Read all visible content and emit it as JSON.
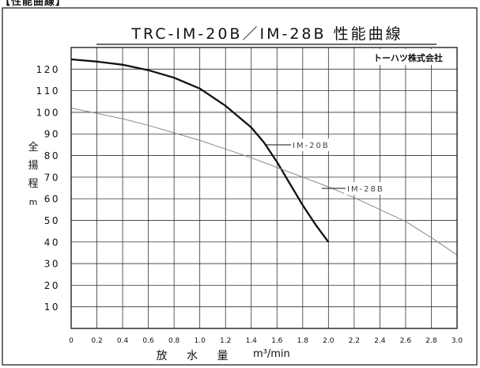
{
  "header_label": "【性能曲線】",
  "company": "トーハツ株式会社",
  "chart_data": {
    "type": "line",
    "title": "TRC-IM-20B／IM-28B 性能曲線",
    "ylabel": [
      "全",
      "揚",
      "程",
      "m"
    ],
    "xlabel": "放 水 量",
    "xunit": "m³/min",
    "xlim": [
      0,
      3.0
    ],
    "ylim": [
      0,
      130
    ],
    "xticks": [
      "0",
      "0.2",
      "0.4",
      "0.6",
      "0.8",
      "1.0",
      "1.2",
      "1.4",
      "1.6",
      "1.8",
      "2.0",
      "2.2",
      "2.4",
      "2.6",
      "2.8",
      "3.0"
    ],
    "yticks": [
      10,
      20,
      30,
      40,
      50,
      60,
      70,
      80,
      90,
      100,
      110,
      120
    ],
    "grid": true,
    "series": [
      {
        "name": "IM-20B",
        "color": "#111111",
        "x": [
          0,
          0.2,
          0.4,
          0.6,
          0.8,
          1.0,
          1.2,
          1.4,
          1.5,
          1.6,
          1.7,
          1.8,
          1.9,
          2.0
        ],
        "y": [
          124.5,
          123.5,
          122,
          119.5,
          116,
          111,
          103,
          93,
          86,
          77,
          67,
          57,
          48,
          40
        ]
      },
      {
        "name": "IM-28B",
        "color": "#888888",
        "x": [
          0,
          0.2,
          0.4,
          0.6,
          0.8,
          1.0,
          1.2,
          1.4,
          1.6,
          1.8,
          2.0,
          2.2,
          2.4,
          2.6,
          2.8,
          3.0
        ],
        "y": [
          102,
          99.5,
          97,
          94,
          90.5,
          87,
          83,
          79,
          74.5,
          70,
          65.5,
          60.5,
          55,
          49.5,
          42,
          34
        ]
      }
    ],
    "annotations": [
      {
        "text": "IM-20B",
        "series": 0
      },
      {
        "text": "IM-28B",
        "series": 1
      }
    ]
  }
}
